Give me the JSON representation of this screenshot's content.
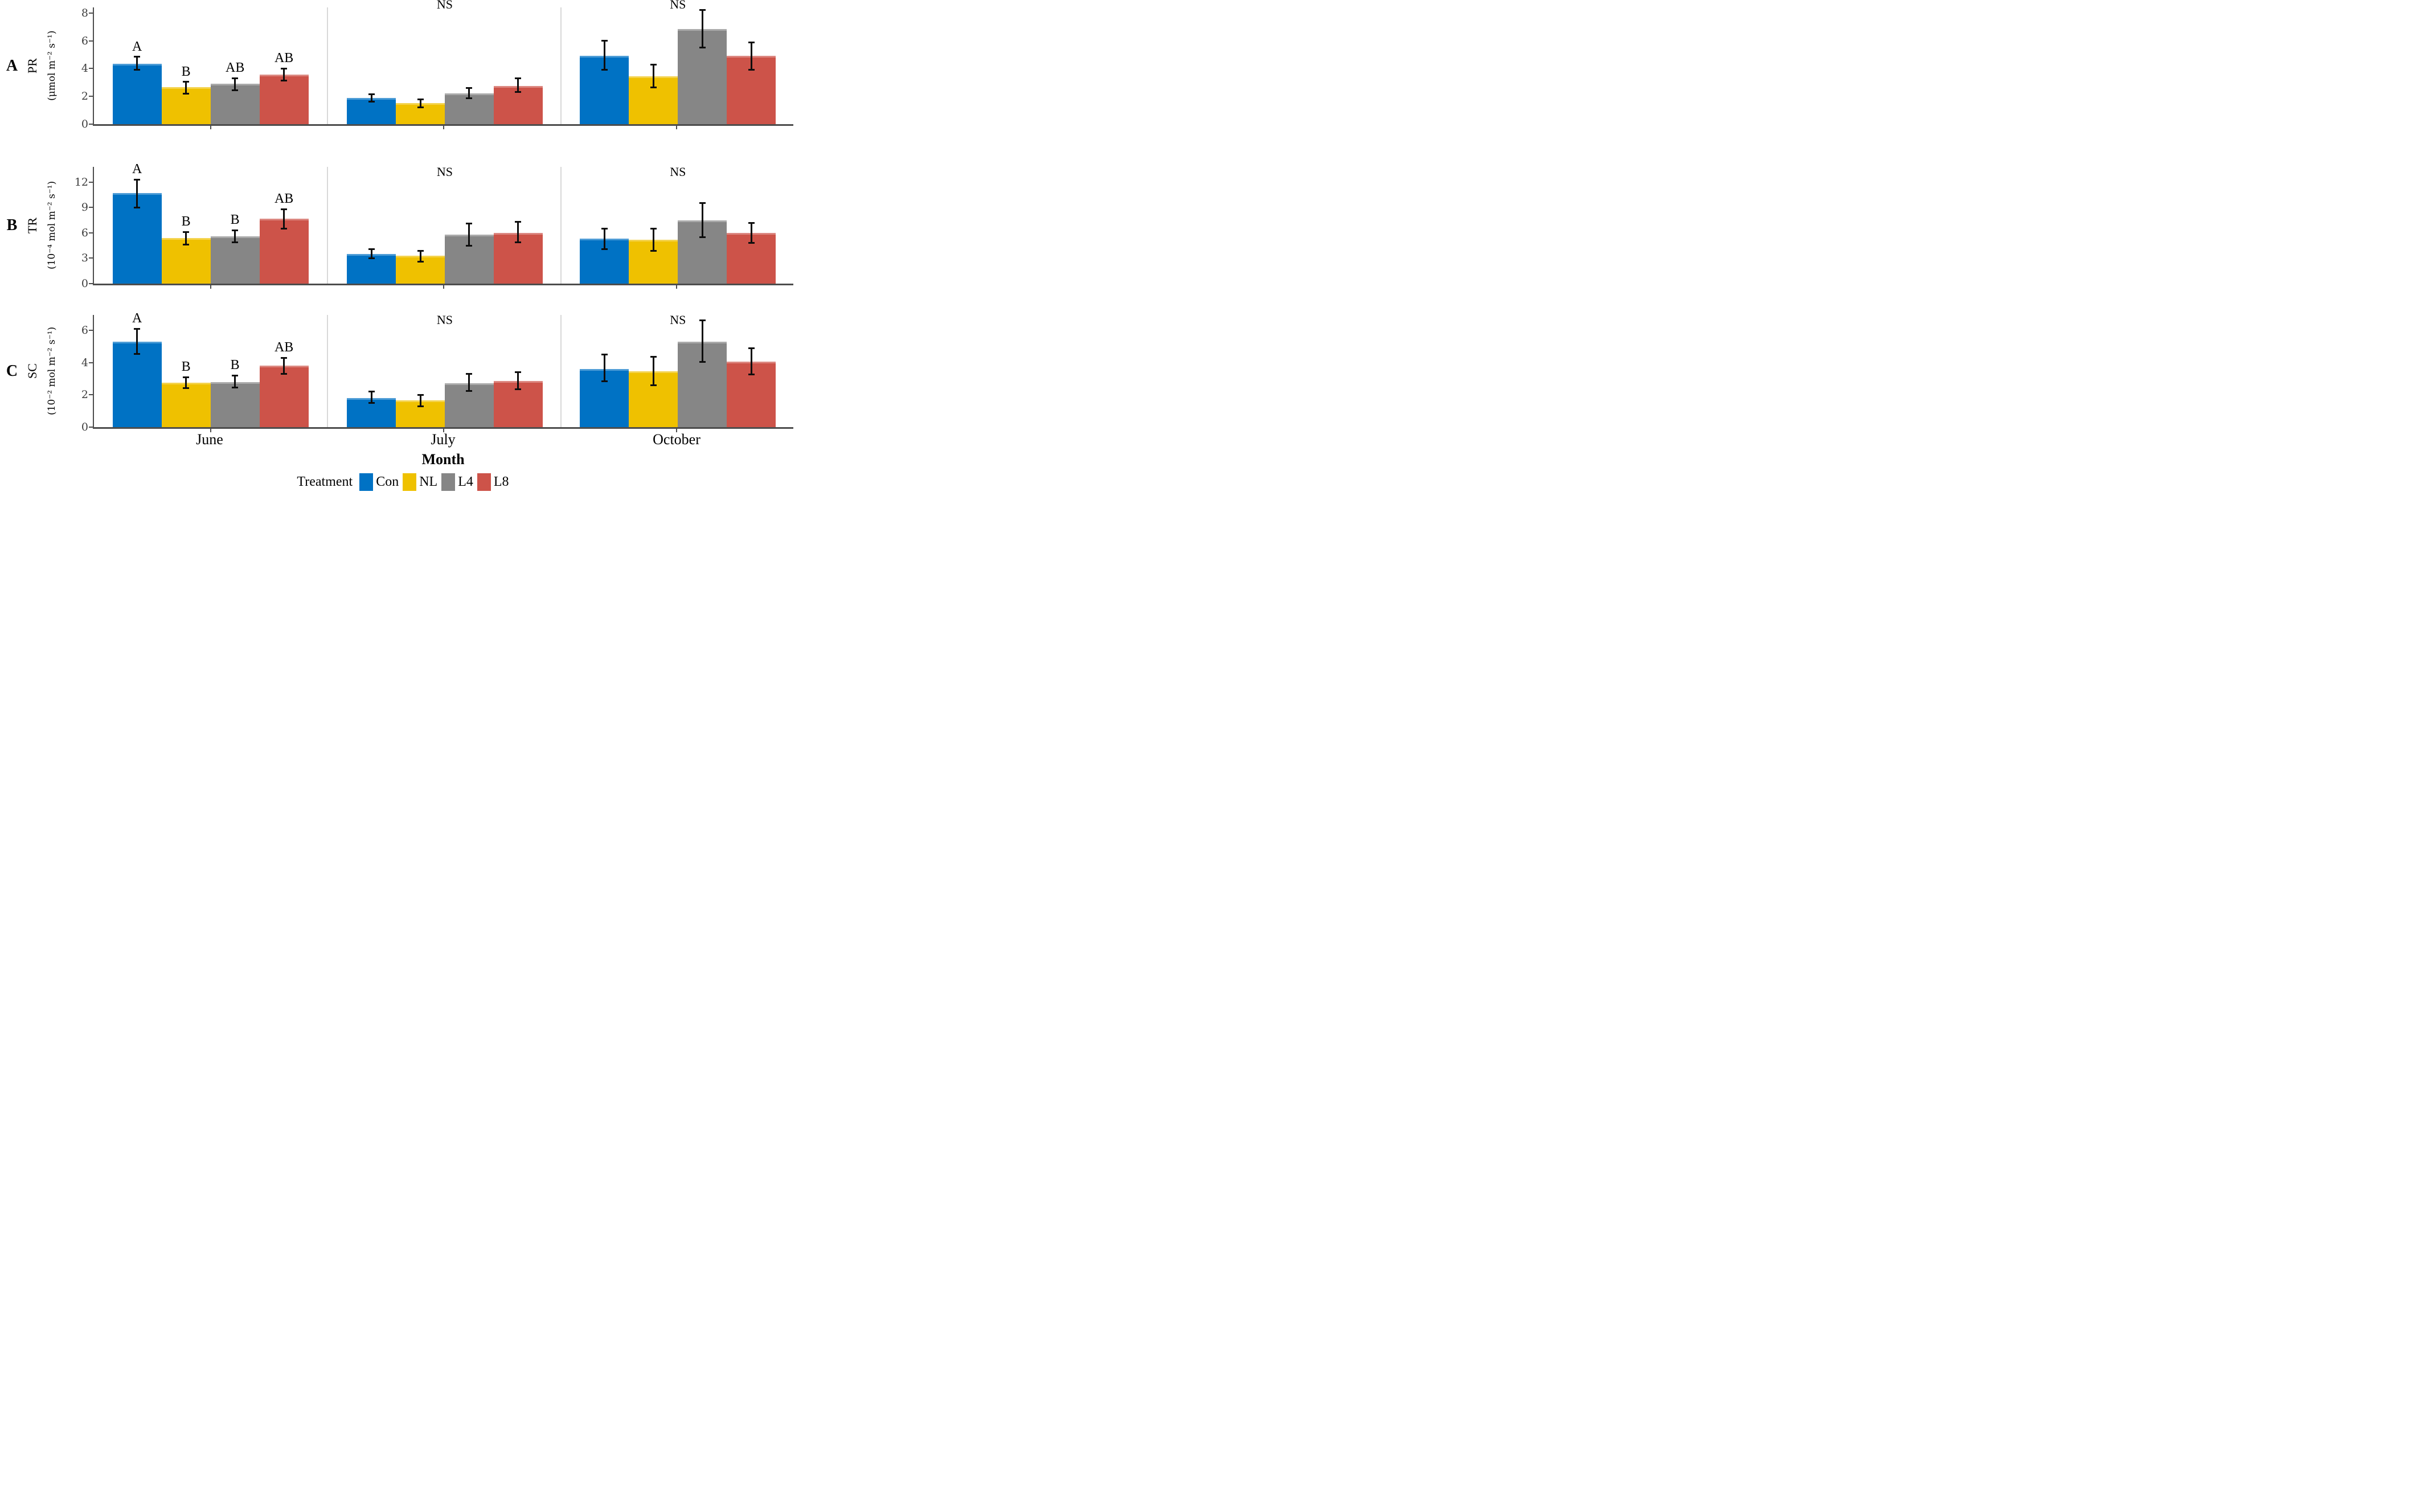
{
  "figure": {
    "x_axis_title": "Month",
    "months": [
      "June",
      "July",
      "October"
    ],
    "ns_label": "NS",
    "legend": {
      "title": "Treatment",
      "items": [
        {
          "label": "Con",
          "color": "#0072C4"
        },
        {
          "label": "NL",
          "color": "#EFC100"
        },
        {
          "label": "L4",
          "color": "#868686"
        },
        {
          "label": "L8",
          "color": "#CD5349"
        }
      ]
    },
    "colors": {
      "axis": "#4d4d4d",
      "separator": "#d8d8d8",
      "error_bar": "#0d0d0d"
    }
  },
  "chart_data": [
    {
      "type": "bar",
      "panel": "A",
      "metric": "PR",
      "unit": "(μmol m⁻² s⁻¹)",
      "ylabel": "PR (μmol m⁻² s⁻¹)",
      "yticks": [
        0,
        2,
        4,
        6,
        8
      ],
      "ylim": [
        0,
        8.4
      ],
      "categories": [
        "June",
        "July",
        "October"
      ],
      "series": [
        {
          "name": "Con",
          "color": "#0072C4",
          "values": [
            4.35,
            1.9,
            4.9
          ],
          "err_low": [
            3.9,
            1.6,
            3.9
          ],
          "err_high": [
            4.85,
            2.15,
            6.0
          ]
        },
        {
          "name": "NL",
          "color": "#EFC100",
          "values": [
            2.65,
            1.5,
            3.45
          ],
          "err_low": [
            2.2,
            1.2,
            2.65
          ],
          "err_high": [
            3.05,
            1.8,
            4.3
          ]
        },
        {
          "name": "L4",
          "color": "#868686",
          "values": [
            2.9,
            2.2,
            6.85
          ],
          "err_low": [
            2.45,
            1.85,
            5.5
          ],
          "err_high": [
            3.3,
            2.6,
            8.2
          ]
        },
        {
          "name": "L8",
          "color": "#CD5349",
          "values": [
            3.55,
            2.75,
            4.9
          ],
          "err_low": [
            3.15,
            2.3,
            3.9
          ],
          "err_high": [
            4.0,
            3.3,
            5.9
          ]
        }
      ],
      "groups": [
        {
          "month": "June",
          "ns": false,
          "letters": [
            "A",
            "B",
            "AB",
            "AB"
          ]
        },
        {
          "month": "July",
          "ns": true,
          "letters": null
        },
        {
          "month": "October",
          "ns": true,
          "letters": null
        }
      ]
    },
    {
      "type": "bar",
      "panel": "B",
      "metric": "TR",
      "unit": "(10⁻⁴ mol m⁻² s⁻¹)",
      "ylabel": "TR (10⁻⁴ mol m⁻² s⁻¹)",
      "yticks": [
        0,
        3,
        6,
        9,
        12
      ],
      "ylim": [
        0,
        13.8
      ],
      "categories": [
        "June",
        "July",
        "October"
      ],
      "series": [
        {
          "name": "Con",
          "color": "#0072C4",
          "values": [
            10.7,
            3.5,
            5.3
          ],
          "err_low": [
            9.0,
            3.0,
            4.1
          ],
          "err_high": [
            12.3,
            4.1,
            6.5
          ]
        },
        {
          "name": "NL",
          "color": "#EFC100",
          "values": [
            5.4,
            3.3,
            5.2
          ],
          "err_low": [
            4.6,
            2.6,
            3.9
          ],
          "err_high": [
            6.1,
            3.9,
            6.5
          ]
        },
        {
          "name": "L4",
          "color": "#868686",
          "values": [
            5.6,
            5.8,
            7.5
          ],
          "err_low": [
            4.9,
            4.5,
            5.5
          ],
          "err_high": [
            6.3,
            7.1,
            9.5
          ]
        },
        {
          "name": "L8",
          "color": "#CD5349",
          "values": [
            7.7,
            6.0,
            6.0
          ],
          "err_low": [
            6.5,
            4.9,
            4.8
          ],
          "err_high": [
            8.8,
            7.3,
            7.2
          ]
        }
      ],
      "groups": [
        {
          "month": "June",
          "ns": false,
          "letters": [
            "A",
            "B",
            "B",
            "AB"
          ]
        },
        {
          "month": "July",
          "ns": true,
          "letters": null
        },
        {
          "month": "October",
          "ns": true,
          "letters": null
        }
      ]
    },
    {
      "type": "bar",
      "panel": "C",
      "metric": "SC",
      "unit": "(10⁻² mol m⁻² s⁻¹)",
      "ylabel": "SC (10⁻² mol m⁻² s⁻¹)",
      "yticks": [
        0,
        2,
        4,
        6
      ],
      "ylim": [
        0,
        6.95
      ],
      "categories": [
        "June",
        "July",
        "October"
      ],
      "series": [
        {
          "name": "Con",
          "color": "#0072C4",
          "values": [
            5.3,
            1.8,
            3.6
          ],
          "err_low": [
            4.55,
            1.5,
            2.85
          ],
          "err_high": [
            6.1,
            2.2,
            4.5
          ]
        },
        {
          "name": "NL",
          "color": "#EFC100",
          "values": [
            2.75,
            1.65,
            3.45
          ],
          "err_low": [
            2.4,
            1.3,
            2.6
          ],
          "err_high": [
            3.1,
            2.0,
            4.35
          ]
        },
        {
          "name": "L4",
          "color": "#868686",
          "values": [
            2.8,
            2.7,
            5.3
          ],
          "err_low": [
            2.45,
            2.25,
            4.05
          ],
          "err_high": [
            3.2,
            3.3,
            6.6
          ]
        },
        {
          "name": "L8",
          "color": "#CD5349",
          "values": [
            3.8,
            2.85,
            4.05
          ],
          "err_low": [
            3.3,
            2.35,
            3.25
          ],
          "err_high": [
            4.3,
            3.4,
            4.9
          ]
        }
      ],
      "groups": [
        {
          "month": "June",
          "ns": false,
          "letters": [
            "A",
            "B",
            "B",
            "AB"
          ]
        },
        {
          "month": "July",
          "ns": true,
          "letters": null
        },
        {
          "month": "October",
          "ns": true,
          "letters": null
        }
      ]
    }
  ]
}
